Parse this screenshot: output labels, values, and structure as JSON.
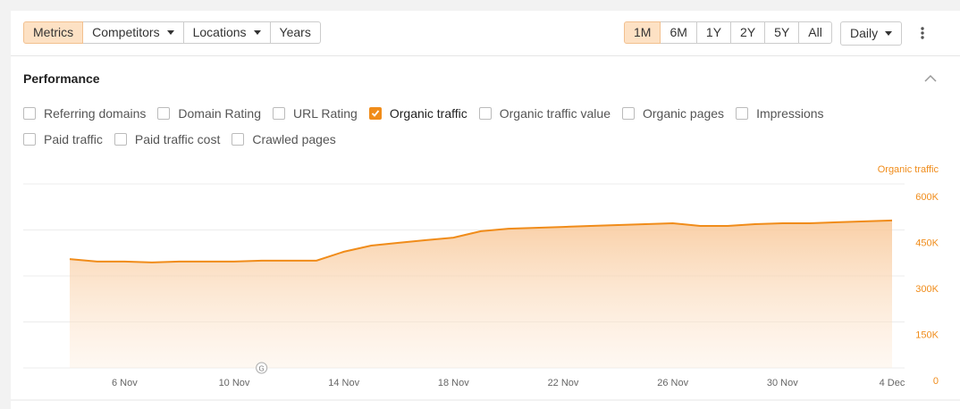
{
  "toolbar": {
    "filters": [
      "Metrics",
      "Competitors",
      "Locations",
      "Years"
    ],
    "active_filter": 0,
    "ranges": [
      "1M",
      "6M",
      "1Y",
      "2Y",
      "5Y",
      "All"
    ],
    "active_range": 0,
    "interval": "Daily"
  },
  "section": {
    "title": "Performance",
    "metrics": [
      {
        "label": "Referring domains",
        "checked": false
      },
      {
        "label": "Domain Rating",
        "checked": false
      },
      {
        "label": "URL Rating",
        "checked": false
      },
      {
        "label": "Organic traffic",
        "checked": true
      },
      {
        "label": "Organic traffic value",
        "checked": false
      },
      {
        "label": "Organic pages",
        "checked": false
      },
      {
        "label": "Impressions",
        "checked": false
      },
      {
        "label": "Paid traffic",
        "checked": false
      },
      {
        "label": "Paid traffic cost",
        "checked": false
      },
      {
        "label": "Crawled pages",
        "checked": false
      }
    ]
  },
  "chart_data": {
    "type": "area",
    "categories": [
      null,
      null,
      "6 Nov",
      null,
      null,
      null,
      "10 Nov",
      null,
      null,
      null,
      "14 Nov",
      null,
      null,
      null,
      "18 Nov",
      null,
      null,
      null,
      "22 Nov",
      null,
      null,
      null,
      "26 Nov",
      null,
      null,
      null,
      "30 Nov",
      null,
      null,
      null,
      "4 Dec"
    ],
    "series": [
      {
        "name": "Organic traffic",
        "color": "#f08c1a",
        "values": [
          355000,
          347000,
          347000,
          344000,
          347000,
          347000,
          347000,
          350000,
          350000,
          350000,
          379000,
          399000,
          408000,
          417000,
          425000,
          446000,
          454000,
          457000,
          460000,
          463000,
          466000,
          469000,
          472000,
          463000,
          463000,
          469000,
          472000,
          472000,
          475000,
          478000,
          481000
        ]
      }
    ],
    "ylim": [
      0,
      600000
    ],
    "yticks": [
      0,
      {
        "value": 150000,
        "label": "150K"
      },
      {
        "value": 300000,
        "label": "300K"
      },
      {
        "value": 450000,
        "label": "450K"
      },
      {
        "value": 600000,
        "label": "600K"
      }
    ],
    "grid": true,
    "annotation_marker": "G",
    "annotation_index": 7
  }
}
